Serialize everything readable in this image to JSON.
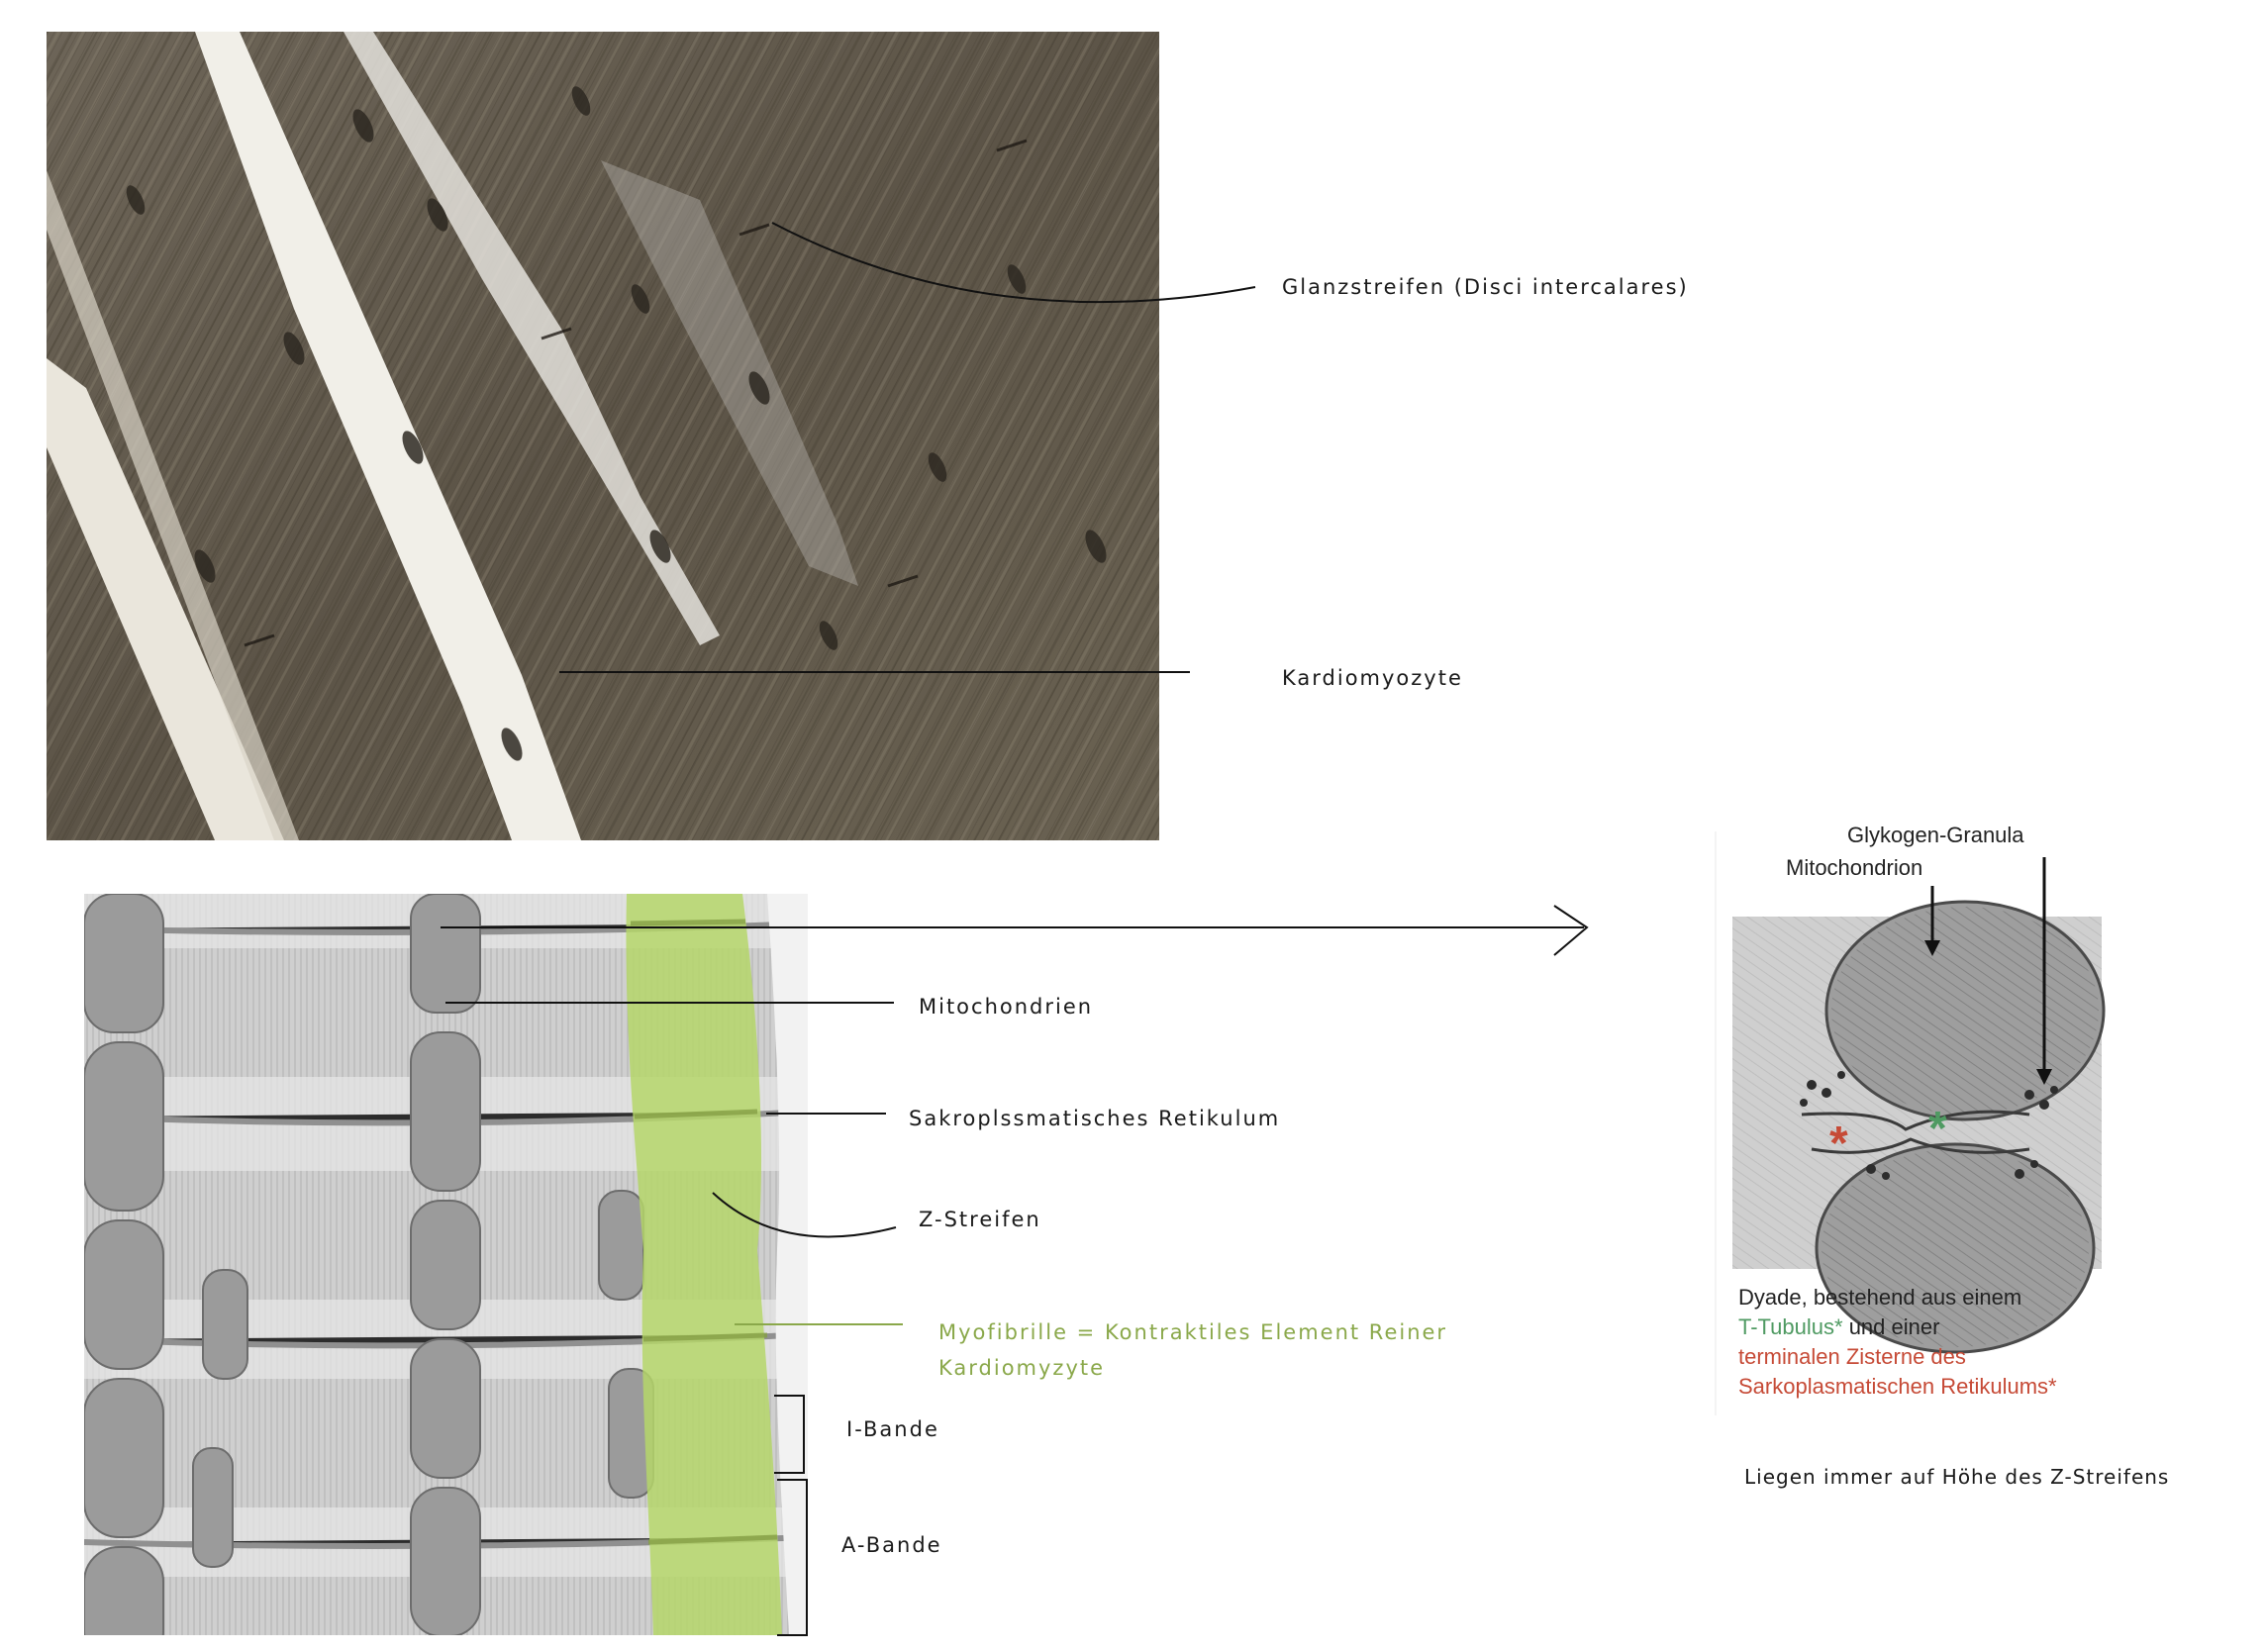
{
  "light_micrograph": {
    "labels": {
      "glanzstreifen": "Glanzstreifen (Disci intercalares)",
      "kardiomyozyte": "Kardiomyozyte"
    }
  },
  "electron_micrograph": {
    "labels": {
      "mitochondrien": "Mitochondrien",
      "sr": "Sakroplssmatisches Retikulum",
      "z_streifen": "Z-Streifen",
      "myofibrille": "Myofibrille = Kontraktiles Element Reiner Kardiomyzyte",
      "i_bande": "I-Bande",
      "a_bande": "A-Bande"
    }
  },
  "dyade_figure": {
    "labels": {
      "glykogen": "Glykogen-Granula",
      "mitochondrion": "Mitochondrion"
    },
    "caption": {
      "line1": "Dyade, bestehend aus einem",
      "t_tubulus": "T-Tubulus*",
      "und_einer": " und einer",
      "zisterne": "terminalen Zisterne des Sarkoplasmatischen Retikulums*"
    },
    "note": "Liegen immer auf Höhe des Z-Streifens",
    "colors": {
      "t_tubulus": "#4f9a62",
      "zisterne": "#c64a36",
      "myofibril_highlight": "#b5d66a"
    }
  }
}
